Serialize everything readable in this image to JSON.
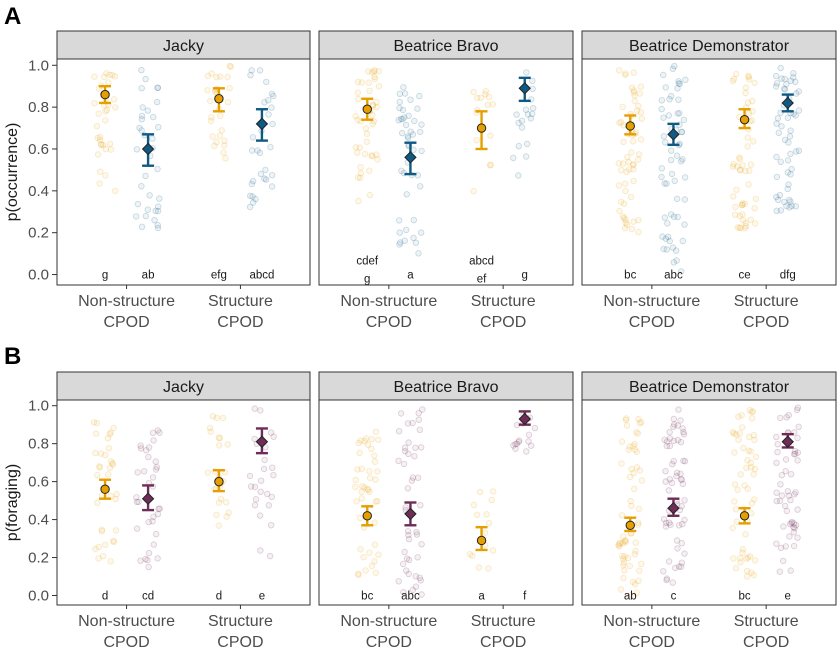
{
  "colors": {
    "non_structure": "#E69F00",
    "structure_occurrence": "#0F5A85",
    "structure_foraging": "#6E2D57",
    "strip_fill": "#D9D9D9",
    "panel_border": "#333333"
  },
  "chart_data": [
    {
      "panel_letter": "A",
      "type": "scatter",
      "ylabel": "p(occurrence)",
      "ylim": [
        -0.05,
        1.03
      ],
      "yticks": [
        "0.0",
        "0.2",
        "0.4",
        "0.6",
        "0.8",
        "1.0"
      ],
      "ytick_values": [
        0,
        0.2,
        0.4,
        0.6,
        0.8,
        1.0
      ],
      "xlabel_lines": [
        [
          "Non-structure",
          "CPOD"
        ],
        [
          "Structure",
          "CPOD"
        ]
      ],
      "facets": [
        {
          "name": "Jacky",
          "series": [
            {
              "category": "Non-structure",
              "detector": "Non-structure CPOD",
              "mean": 0.86,
              "lower": 0.82,
              "upper": 0.9,
              "label": "g",
              "raw_range": [
                0.4,
                1.0
              ],
              "raw_count": 35,
              "color_key": "non_structure",
              "shape": "circle"
            },
            {
              "category": "Non-structure",
              "detector": "Structure CPOD",
              "mean": 0.6,
              "lower": 0.52,
              "upper": 0.67,
              "label": "ab",
              "raw_range": [
                0.22,
                0.98
              ],
              "raw_count": 35,
              "color_key": "structure_occurrence",
              "shape": "diamond"
            },
            {
              "category": "Structure",
              "detector": "Non-structure CPOD",
              "mean": 0.84,
              "lower": 0.78,
              "upper": 0.89,
              "label": "efg",
              "raw_range": [
                0.52,
                1.0
              ],
              "raw_count": 30,
              "color_key": "non_structure",
              "shape": "circle"
            },
            {
              "category": "Structure",
              "detector": "Structure CPOD",
              "mean": 0.72,
              "lower": 0.64,
              "upper": 0.79,
              "label": "abcd",
              "raw_range": [
                0.32,
                0.98
              ],
              "raw_count": 30,
              "color_key": "structure_occurrence",
              "shape": "diamond"
            }
          ]
        },
        {
          "name": "Beatrice Bravo",
          "series": [
            {
              "category": "Non-structure",
              "detector": "Non-structure CPOD",
              "mean": 0.79,
              "lower": 0.74,
              "upper": 0.84,
              "label": "cdef\ng",
              "raw_range": [
                0.35,
                1.0
              ],
              "raw_count": 45,
              "color_key": "non_structure",
              "shape": "circle"
            },
            {
              "category": "Non-structure",
              "detector": "Structure CPOD",
              "mean": 0.56,
              "lower": 0.48,
              "upper": 0.63,
              "label": "a",
              "raw_range": [
                0.1,
                0.9
              ],
              "raw_count": 45,
              "color_key": "structure_occurrence",
              "shape": "diamond"
            },
            {
              "category": "Structure",
              "detector": "Non-structure CPOD",
              "mean": 0.7,
              "lower": 0.6,
              "upper": 0.78,
              "label": "abcd\nef",
              "raw_range": [
                0.38,
                0.95
              ],
              "raw_count": 15,
              "color_key": "non_structure",
              "shape": "circle"
            },
            {
              "category": "Structure",
              "detector": "Structure CPOD",
              "mean": 0.89,
              "lower": 0.83,
              "upper": 0.94,
              "label": "g",
              "raw_range": [
                0.45,
                1.0
              ],
              "raw_count": 18,
              "color_key": "structure_occurrence",
              "shape": "diamond"
            }
          ]
        },
        {
          "name": "Beatrice Demonstrator",
          "series": [
            {
              "category": "Non-structure",
              "detector": "Non-structure CPOD",
              "mean": 0.71,
              "lower": 0.67,
              "upper": 0.76,
              "label": "bc",
              "raw_range": [
                0.18,
                0.98
              ],
              "raw_count": 60,
              "color_key": "non_structure",
              "shape": "circle"
            },
            {
              "category": "Non-structure",
              "detector": "Structure CPOD",
              "mean": 0.67,
              "lower": 0.62,
              "upper": 0.72,
              "label": "abc",
              "raw_range": [
                0.0,
                1.0
              ],
              "raw_count": 60,
              "color_key": "structure_occurrence",
              "shape": "diamond"
            },
            {
              "category": "Structure",
              "detector": "Non-structure CPOD",
              "mean": 0.74,
              "lower": 0.7,
              "upper": 0.79,
              "label": "ce",
              "raw_range": [
                0.22,
                0.98
              ],
              "raw_count": 55,
              "color_key": "non_structure",
              "shape": "circle"
            },
            {
              "category": "Structure",
              "detector": "Structure CPOD",
              "mean": 0.82,
              "lower": 0.78,
              "upper": 0.86,
              "label": "dfg",
              "raw_range": [
                0.3,
                1.0
              ],
              "raw_count": 55,
              "color_key": "structure_occurrence",
              "shape": "diamond"
            }
          ]
        }
      ]
    },
    {
      "panel_letter": "B",
      "type": "scatter",
      "ylabel": "p(foraging)",
      "ylim": [
        -0.05,
        1.03
      ],
      "yticks": [
        "0.0",
        "0.2",
        "0.4",
        "0.6",
        "0.8",
        "1.0"
      ],
      "ytick_values": [
        0,
        0.2,
        0.4,
        0.6,
        0.8,
        1.0
      ],
      "xlabel_lines": [
        [
          "Non-structure",
          "CPOD"
        ],
        [
          "Structure",
          "CPOD"
        ]
      ],
      "facets": [
        {
          "name": "Jacky",
          "series": [
            {
              "category": "Non-structure",
              "detector": "Non-structure CPOD",
              "mean": 0.56,
              "lower": 0.51,
              "upper": 0.61,
              "label": "d",
              "raw_range": [
                0.18,
                0.95
              ],
              "raw_count": 35,
              "color_key": "non_structure",
              "shape": "circle"
            },
            {
              "category": "Non-structure",
              "detector": "Structure CPOD",
              "mean": 0.51,
              "lower": 0.45,
              "upper": 0.58,
              "label": "cd",
              "raw_range": [
                0.15,
                0.9
              ],
              "raw_count": 35,
              "color_key": "structure_foraging",
              "shape": "diamond"
            },
            {
              "category": "Structure",
              "detector": "Non-structure CPOD",
              "mean": 0.6,
              "lower": 0.55,
              "upper": 0.66,
              "label": "d",
              "raw_range": [
                0.35,
                0.95
              ],
              "raw_count": 25,
              "color_key": "non_structure",
              "shape": "circle"
            },
            {
              "category": "Structure",
              "detector": "Structure CPOD",
              "mean": 0.81,
              "lower": 0.75,
              "upper": 0.88,
              "label": "e",
              "raw_range": [
                0.15,
                1.0
              ],
              "raw_count": 25,
              "color_key": "structure_foraging",
              "shape": "diamond"
            }
          ]
        },
        {
          "name": "Beatrice Bravo",
          "series": [
            {
              "category": "Non-structure",
              "detector": "Non-structure CPOD",
              "mean": 0.42,
              "lower": 0.37,
              "upper": 0.47,
              "label": "bc",
              "raw_range": [
                0.1,
                0.9
              ],
              "raw_count": 45,
              "color_key": "non_structure",
              "shape": "circle"
            },
            {
              "category": "Non-structure",
              "detector": "Structure CPOD",
              "mean": 0.43,
              "lower": 0.37,
              "upper": 0.49,
              "label": "abc",
              "raw_range": [
                0.0,
                0.98
              ],
              "raw_count": 45,
              "color_key": "structure_foraging",
              "shape": "diamond"
            },
            {
              "category": "Structure",
              "detector": "Non-structure CPOD",
              "mean": 0.29,
              "lower": 0.24,
              "upper": 0.36,
              "label": "a",
              "raw_range": [
                0.12,
                0.56
              ],
              "raw_count": 14,
              "color_key": "non_structure",
              "shape": "circle"
            },
            {
              "category": "Structure",
              "detector": "Structure CPOD",
              "mean": 0.93,
              "lower": 0.9,
              "upper": 0.97,
              "label": "f",
              "raw_range": [
                0.75,
                1.0
              ],
              "raw_count": 16,
              "color_key": "structure_foraging",
              "shape": "diamond"
            }
          ]
        },
        {
          "name": "Beatrice Demonstrator",
          "series": [
            {
              "category": "Non-structure",
              "detector": "Non-structure CPOD",
              "mean": 0.37,
              "lower": 0.34,
              "upper": 0.41,
              "label": "ab",
              "raw_range": [
                0.0,
                0.95
              ],
              "raw_count": 60,
              "color_key": "non_structure",
              "shape": "circle"
            },
            {
              "category": "Non-structure",
              "detector": "Structure CPOD",
              "mean": 0.46,
              "lower": 0.42,
              "upper": 0.51,
              "label": "c",
              "raw_range": [
                0.0,
                1.0
              ],
              "raw_count": 60,
              "color_key": "structure_foraging",
              "shape": "diamond"
            },
            {
              "category": "Structure",
              "detector": "Non-structure CPOD",
              "mean": 0.42,
              "lower": 0.38,
              "upper": 0.46,
              "label": "bc",
              "raw_range": [
                0.1,
                0.98
              ],
              "raw_count": 55,
              "color_key": "non_structure",
              "shape": "circle"
            },
            {
              "category": "Structure",
              "detector": "Structure CPOD",
              "mean": 0.81,
              "lower": 0.78,
              "upper": 0.85,
              "label": "e",
              "raw_range": [
                0.12,
                1.0
              ],
              "raw_count": 55,
              "color_key": "structure_foraging",
              "shape": "diamond"
            }
          ]
        }
      ]
    }
  ]
}
